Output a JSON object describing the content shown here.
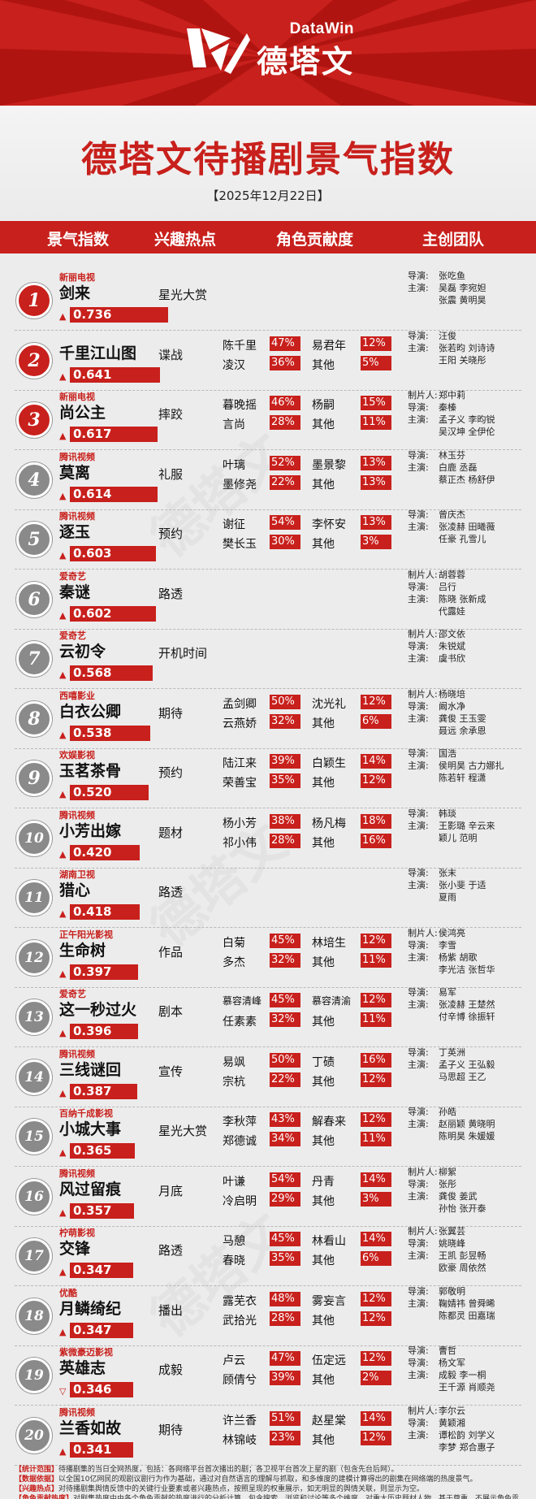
{
  "brand": {
    "en": "DataWin",
    "cn": "德塔文",
    "accent": "#c8201c"
  },
  "title": "德塔文待播剧景气指数",
  "date": "【2025年12月22日】",
  "columns": [
    "景气指数",
    "兴趣热点",
    "角色贡献度",
    "主创团队"
  ],
  "rows": [
    {
      "rank": "1",
      "platform": "新丽电视",
      "name": "剑来",
      "score": "0.736",
      "score_value": 0.736,
      "trend": "▲",
      "hotspot": "星光大赏",
      "roles": [],
      "team": [
        {
          "label": "导演:",
          "names": "张吃鱼"
        },
        {
          "label": "主演:",
          "names": "吴磊  李宛妲"
        },
        {
          "label": "",
          "names": "张震  黄明昊"
        }
      ]
    },
    {
      "rank": "2",
      "platform": "",
      "name": "千里江山图",
      "score": "0.641",
      "score_value": 0.641,
      "trend": "▲",
      "hotspot": "谍战",
      "roles": [
        {
          "n1": "陈千里",
          "p1": "47%",
          "n2": "易君年",
          "p2": "12%"
        },
        {
          "n1": "凌汉",
          "p1": "36%",
          "n2": "其他",
          "p2": "5%"
        }
      ],
      "team": [
        {
          "label": "导演:",
          "names": "汪俊"
        },
        {
          "label": "主演:",
          "names": "张若昀  刘诗诗"
        },
        {
          "label": "",
          "names": "王阳  关晓彤"
        }
      ]
    },
    {
      "rank": "3",
      "platform": "新丽电视",
      "name": "尚公主",
      "score": "0.617",
      "score_value": 0.617,
      "trend": "▲",
      "hotspot": "摔跤",
      "roles": [
        {
          "n1": "暮晚摇",
          "p1": "46%",
          "n2": "杨嗣",
          "p2": "15%"
        },
        {
          "n1": "言尚",
          "p1": "28%",
          "n2": "其他",
          "p2": "11%"
        }
      ],
      "team": [
        {
          "label": "制片人:",
          "names": "郑中莉"
        },
        {
          "label": "导演:",
          "names": "秦榛"
        },
        {
          "label": "主演:",
          "names": "孟子义  李昀锐"
        },
        {
          "label": "",
          "names": "吴汉坤  全伊伦"
        }
      ]
    },
    {
      "rank": "4",
      "platform": "腾讯视频",
      "name": "莫离",
      "score": "0.614",
      "score_value": 0.614,
      "trend": "▲",
      "hotspot": "礼服",
      "roles": [
        {
          "n1": "叶璃",
          "p1": "52%",
          "n2": "墨景黎",
          "p2": "13%"
        },
        {
          "n1": "墨修尧",
          "p1": "22%",
          "n2": "其他",
          "p2": "13%"
        }
      ],
      "team": [
        {
          "label": "导演:",
          "names": "林玉芬"
        },
        {
          "label": "主演:",
          "names": "白鹿  丞磊"
        },
        {
          "label": "",
          "names": "蔡正杰  杨舒伊"
        }
      ]
    },
    {
      "rank": "5",
      "platform": "腾讯视频",
      "name": "逐玉",
      "score": "0.603",
      "score_value": 0.603,
      "trend": "▲",
      "hotspot": "预约",
      "roles": [
        {
          "n1": "谢征",
          "p1": "54%",
          "n2": "李怀安",
          "p2": "13%"
        },
        {
          "n1": "樊长玉",
          "p1": "30%",
          "n2": "其他",
          "p2": "3%"
        }
      ],
      "team": [
        {
          "label": "导演:",
          "names": "曾庆杰"
        },
        {
          "label": "主演:",
          "names": "张凌赫  田曦薇"
        },
        {
          "label": "",
          "names": "任豪  孔雪儿"
        }
      ]
    },
    {
      "rank": "6",
      "platform": "爱奇艺",
      "name": "秦谜",
      "score": "0.602",
      "score_value": 0.602,
      "trend": "▲",
      "hotspot": "路透",
      "roles": [],
      "team": [
        {
          "label": "制片人:",
          "names": "胡蓉蓉"
        },
        {
          "label": "导演:",
          "names": "吕行"
        },
        {
          "label": "主演:",
          "names": "陈晓  张新成"
        },
        {
          "label": "",
          "names": "代露娃"
        }
      ]
    },
    {
      "rank": "7",
      "platform": "爱奇艺",
      "name": "云初令",
      "score": "0.568",
      "score_value": 0.568,
      "trend": "▲",
      "hotspot": "开机时间",
      "roles": [],
      "team": [
        {
          "label": "制片人:",
          "names": "邵文依"
        },
        {
          "label": "导演:",
          "names": "朱锐斌"
        },
        {
          "label": "主演:",
          "names": "虞书欣"
        }
      ]
    },
    {
      "rank": "8",
      "platform": "西嘻影业",
      "name": "白衣公卿",
      "score": "0.538",
      "score_value": 0.538,
      "trend": "▲",
      "hotspot": "期待",
      "roles": [
        {
          "n1": "孟剑卿",
          "p1": "50%",
          "n2": "沈光礼",
          "p2": "12%"
        },
        {
          "n1": "云燕娇",
          "p1": "32%",
          "n2": "其他",
          "p2": "6%"
        }
      ],
      "team": [
        {
          "label": "制片人:",
          "names": "杨晓培"
        },
        {
          "label": "导演:",
          "names": "阚水净"
        },
        {
          "label": "主演:",
          "names": "龚俊  王玉雯"
        },
        {
          "label": "",
          "names": "聂远  余承恩"
        }
      ]
    },
    {
      "rank": "9",
      "platform": "欢娱影视",
      "name": "玉茗茶骨",
      "score": "0.520",
      "score_value": 0.52,
      "trend": "▲",
      "hotspot": "预约",
      "roles": [
        {
          "n1": "陆江来",
          "p1": "39%",
          "n2": "白颖生",
          "p2": "14%"
        },
        {
          "n1": "荣善宝",
          "p1": "35%",
          "n2": "其他",
          "p2": "12%"
        }
      ],
      "team": [
        {
          "label": "导演:",
          "names": "国浩"
        },
        {
          "label": "主演:",
          "names": "侯明昊  古力娜扎"
        },
        {
          "label": "",
          "names": "陈若轩  程潇"
        }
      ]
    },
    {
      "rank": "10",
      "platform": "腾讯视频",
      "name": "小芳出嫁",
      "score": "0.420",
      "score_value": 0.42,
      "trend": "▲",
      "hotspot": "题材",
      "roles": [
        {
          "n1": "杨小芳",
          "p1": "38%",
          "n2": "杨凡梅",
          "p2": "18%"
        },
        {
          "n1": "祁小伟",
          "p1": "28%",
          "n2": "其他",
          "p2": "16%"
        }
      ],
      "team": [
        {
          "label": "导演:",
          "names": "韩琰"
        },
        {
          "label": "主演:",
          "names": "王影璐  辛云来"
        },
        {
          "label": "",
          "names": "颖儿  范明"
        }
      ]
    },
    {
      "rank": "11",
      "platform": "湖南卫视",
      "name": "猎心",
      "score": "0.418",
      "score_value": 0.418,
      "trend": "▲",
      "hotspot": "路透",
      "roles": [],
      "team": [
        {
          "label": "导演:",
          "names": "张末"
        },
        {
          "label": "主演:",
          "names": "张小斐  于适"
        },
        {
          "label": "",
          "names": "夏雨"
        }
      ]
    },
    {
      "rank": "12",
      "platform": "正午阳光影视",
      "name": "生命树",
      "score": "0.397",
      "score_value": 0.397,
      "trend": "▲",
      "hotspot": "作品",
      "roles": [
        {
          "n1": "白菊",
          "p1": "45%",
          "n2": "林培生",
          "p2": "12%"
        },
        {
          "n1": "多杰",
          "p1": "32%",
          "n2": "其他",
          "p2": "11%"
        }
      ],
      "team": [
        {
          "label": "制片人:",
          "names": "侯鸿亮"
        },
        {
          "label": "导演:",
          "names": "李雪"
        },
        {
          "label": "主演:",
          "names": "杨紫  胡歌"
        },
        {
          "label": "",
          "names": "李光洁  张哲华"
        }
      ]
    },
    {
      "rank": "13",
      "platform": "爱奇艺",
      "name": "这一秒过火",
      "score": "0.396",
      "score_value": 0.396,
      "trend": "▲",
      "hotspot": "剧本",
      "roles": [
        {
          "n1": "慕容清峰",
          "p1": "45%",
          "n2": "慕容清渝",
          "p2": "12%"
        },
        {
          "n1": "任素素",
          "p1": "32%",
          "n2": "其他",
          "p2": "11%"
        }
      ],
      "team": [
        {
          "label": "导演:",
          "names": "易军"
        },
        {
          "label": "主演:",
          "names": "张凌赫  王楚然"
        },
        {
          "label": "",
          "names": "付辛博  徐振轩"
        }
      ]
    },
    {
      "rank": "14",
      "platform": "腾讯视频",
      "name": "三线谜回",
      "score": "0.387",
      "score_value": 0.387,
      "trend": "▲",
      "hotspot": "宣传",
      "roles": [
        {
          "n1": "易飒",
          "p1": "50%",
          "n2": "丁碛",
          "p2": "16%"
        },
        {
          "n1": "宗杭",
          "p1": "22%",
          "n2": "其他",
          "p2": "12%"
        }
      ],
      "team": [
        {
          "label": "导演:",
          "names": "丁英洲"
        },
        {
          "label": "主演:",
          "names": "孟子义  王弘毅"
        },
        {
          "label": "",
          "names": "马思超  王乙"
        }
      ]
    },
    {
      "rank": "15",
      "platform": "百纳千成影视",
      "name": "小城大事",
      "score": "0.365",
      "score_value": 0.365,
      "trend": "▲",
      "hotspot": "星光大赏",
      "roles": [
        {
          "n1": "李秋萍",
          "p1": "43%",
          "n2": "解春来",
          "p2": "12%"
        },
        {
          "n1": "郑德诚",
          "p1": "34%",
          "n2": "其他",
          "p2": "11%"
        }
      ],
      "team": [
        {
          "label": "导演:",
          "names": "孙皓"
        },
        {
          "label": "主演:",
          "names": "赵丽颖  黄晓明"
        },
        {
          "label": "",
          "names": "陈明昊  朱媛媛"
        }
      ]
    },
    {
      "rank": "16",
      "platform": "腾讯视频",
      "name": "风过留痕",
      "score": "0.357",
      "score_value": 0.357,
      "trend": "▲",
      "hotspot": "月底",
      "roles": [
        {
          "n1": "叶谦",
          "p1": "54%",
          "n2": "丹青",
          "p2": "14%"
        },
        {
          "n1": "冷启明",
          "p1": "29%",
          "n2": "其他",
          "p2": "3%"
        }
      ],
      "team": [
        {
          "label": "制片人:",
          "names": "柳絮"
        },
        {
          "label": "导演:",
          "names": "张彤"
        },
        {
          "label": "主演:",
          "names": "龚俊  姜武"
        },
        {
          "label": "",
          "names": "孙怡  张开泰"
        }
      ]
    },
    {
      "rank": "17",
      "platform": "柠萌影视",
      "name": "交锋",
      "score": "0.347",
      "score_value": 0.347,
      "trend": "▲",
      "hotspot": "路透",
      "roles": [
        {
          "n1": "马憩",
          "p1": "45%",
          "n2": "林看山",
          "p2": "14%"
        },
        {
          "n1": "春晓",
          "p1": "35%",
          "n2": "其他",
          "p2": "6%"
        }
      ],
      "team": [
        {
          "label": "制片人:",
          "names": "张翼芸"
        },
        {
          "label": "导演:",
          "names": "姚晓峰"
        },
        {
          "label": "主演:",
          "names": "王凯  彭昱畅"
        },
        {
          "label": "",
          "names": "欧豪  周依然"
        }
      ]
    },
    {
      "rank": "18",
      "platform": "优酷",
      "name": "月鳞绮纪",
      "score": "0.347",
      "score_value": 0.347,
      "trend": "▲",
      "hotspot": "播出",
      "roles": [
        {
          "n1": "露芜衣",
          "p1": "48%",
          "n2": "雾妄言",
          "p2": "12%"
        },
        {
          "n1": "武拾光",
          "p1": "28%",
          "n2": "其他",
          "p2": "12%"
        }
      ],
      "team": [
        {
          "label": "导演:",
          "names": "郭敬明"
        },
        {
          "label": "主演:",
          "names": "鞠婧祎  曾舜晞"
        },
        {
          "label": "",
          "names": "陈都灵  田嘉瑞"
        }
      ]
    },
    {
      "rank": "19",
      "platform": "紫微豪迈影视",
      "name": "英雄志",
      "score": "0.346",
      "score_value": 0.346,
      "trend": "▽",
      "hotspot": "成毅",
      "roles": [
        {
          "n1": "卢云",
          "p1": "47%",
          "n2": "伍定远",
          "p2": "12%"
        },
        {
          "n1": "顾倩兮",
          "p1": "39%",
          "n2": "其他",
          "p2": "2%"
        }
      ],
      "team": [
        {
          "label": "导演:",
          "names": "曹哲"
        },
        {
          "label": "导演:",
          "names": "杨文军"
        },
        {
          "label": "主演:",
          "names": "成毅  李一桐"
        },
        {
          "label": "",
          "names": "王千源  肖顺尧"
        }
      ]
    },
    {
      "rank": "20",
      "platform": "腾讯视频",
      "name": "兰香如故",
      "score": "0.341",
      "score_value": 0.341,
      "trend": "▲",
      "hotspot": "期待",
      "roles": [
        {
          "n1": "许兰香",
          "p1": "51%",
          "n2": "赵星棠",
          "p2": "14%"
        },
        {
          "n1": "林锦岐",
          "p1": "23%",
          "n2": "其他",
          "p2": "12%"
        }
      ],
      "team": [
        {
          "label": "制片人:",
          "names": "李尔云"
        },
        {
          "label": "导演:",
          "names": "黄颖湘"
        },
        {
          "label": "主演:",
          "names": "谭松韵  刘学义"
        },
        {
          "label": "",
          "names": "李梦  郑合惠子"
        }
      ]
    }
  ],
  "notes": [
    {
      "label": "【统计范围】",
      "text": "待播剧集的当日全网热度，包括：各网络平台首次播出的剧；各卫视平台首次上星的剧（包含先台后网）。"
    },
    {
      "label": "【数据依据】",
      "text": "以全国10亿网民的观剧议剧行为作为基础，通过对自然语言的理解与抓取，和多维度的建模计算得出的剧集在网络端的热度景气。"
    },
    {
      "label": "【兴趣热点】",
      "text": "对待播剧集舆情反馈中的关键行业要素或者兴趣热点，按照呈现的权重展示，如无明显的舆情关联，则显示为空。"
    },
    {
      "label": "【角色贡献热度】",
      "text": "对剧集热度中由各个角色贡献的热度进行的分析计算，包含搜索、浏览和讨论等多个维度，对重大历史题材人物，基于尊重，不展示角色贡献度。"
    },
    {
      "label": "【版权说明】",
      "text": "本榜单数据为公开信息的分析挖掘，如有任何潜在权益人对此主张相关权益，请及时与我司联系。"
    }
  ]
}
